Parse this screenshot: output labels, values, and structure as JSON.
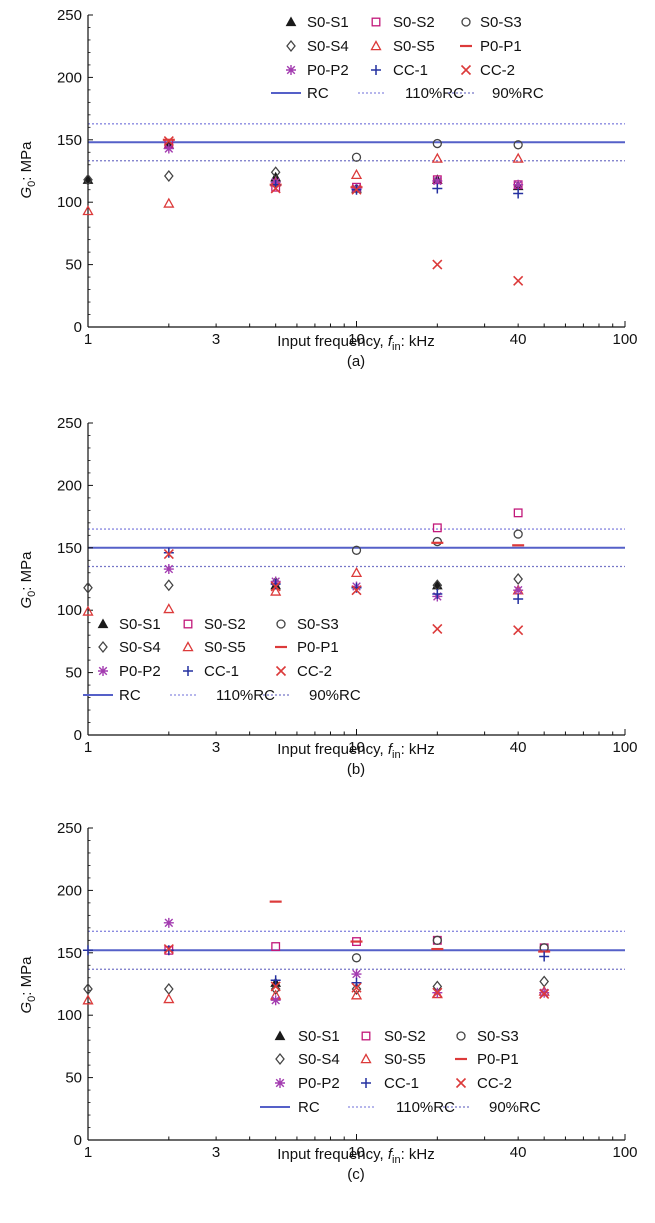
{
  "colors": {
    "black": "#1a1a1a",
    "gray": "#444444",
    "pink": "#c2187a",
    "red": "#dc3a3a",
    "purple": "#a33cb0",
    "blue": "#2430a0",
    "rc_line": "#5560c8",
    "dotted_110": "#8a8ae0",
    "dotted_90": "#7676c8"
  },
  "legend_labels": [
    "S0-S1",
    "S0-S2",
    "S0-S3",
    "S0-S4",
    "S0-S5",
    "P0-P1",
    "P0-P2",
    "CC-1",
    "CC-2",
    "RC",
    "110%RC",
    "90%RC"
  ],
  "chart_data": [
    {
      "type": "scatter",
      "panel": "(a)",
      "xlabel_main": "Input frequency, ",
      "xlabel_f": "f",
      "xlabel_sub": "in",
      "xlabel_unit": ": kHz",
      "ylabel_g": "G",
      "ylabel_sub": "0",
      "ylabel_unit": ": MPa",
      "x_scale": "log",
      "xlim": [
        1,
        100
      ],
      "ylim": [
        0,
        250
      ],
      "xticks": [
        1,
        3,
        10,
        40,
        100
      ],
      "yticks": [
        0,
        50,
        100,
        150,
        200,
        250
      ],
      "legend_position": "top-right",
      "reference_lines": {
        "RC": 148,
        "110%RC": 162.8,
        "90%RC": 133.2
      },
      "series": [
        {
          "name": "S0-S1",
          "marker": "triangle-filled",
          "color": "black",
          "x": [
            1,
            2,
            5,
            10,
            20,
            40
          ],
          "y": [
            118,
            146,
            120,
            111,
            118,
            113
          ]
        },
        {
          "name": "S0-S2",
          "marker": "square-open",
          "color": "pink",
          "x": [
            2,
            5,
            10,
            20,
            40
          ],
          "y": [
            147,
            112,
            112,
            118,
            114
          ]
        },
        {
          "name": "S0-S3",
          "marker": "circle-open",
          "color": "gray",
          "x": [
            10,
            20,
            40
          ],
          "y": [
            136,
            147,
            146
          ]
        },
        {
          "name": "S0-S4",
          "marker": "diamond-open",
          "color": "gray",
          "x": [
            1,
            2,
            5
          ],
          "y": [
            118,
            121,
            124
          ]
        },
        {
          "name": "S0-S5",
          "marker": "triangle-open",
          "color": "red",
          "x": [
            1,
            2,
            5,
            10,
            20,
            40
          ],
          "y": [
            93,
            99,
            116,
            122,
            135,
            135
          ]
        },
        {
          "name": "P0-P1",
          "marker": "dash",
          "color": "red",
          "x": [
            2,
            5,
            10
          ],
          "y": [
            150,
            114,
            112
          ]
        },
        {
          "name": "P0-P2",
          "marker": "asterisk",
          "color": "purple",
          "x": [
            2,
            5,
            10,
            20,
            40
          ],
          "y": [
            143,
            116,
            111,
            117,
            114
          ]
        },
        {
          "name": "CC-1",
          "marker": "plus",
          "color": "blue",
          "x": [
            5,
            10,
            20,
            40
          ],
          "y": [
            114,
            110,
            111,
            107
          ]
        },
        {
          "name": "CC-2",
          "marker": "x",
          "color": "red",
          "x": [
            2,
            5,
            10,
            20,
            40
          ],
          "y": [
            149,
            111,
            110,
            50,
            37
          ]
        }
      ]
    },
    {
      "type": "scatter",
      "panel": "(b)",
      "xlabel_main": "Input frequency, ",
      "xlabel_f": "f",
      "xlabel_sub": "in",
      "xlabel_unit": ": kHz",
      "ylabel_g": "G",
      "ylabel_sub": "0",
      "ylabel_unit": ": MPa",
      "x_scale": "log",
      "xlim": [
        1,
        100
      ],
      "ylim": [
        0,
        250
      ],
      "xticks": [
        1,
        3,
        10,
        40,
        100
      ],
      "yticks": [
        0,
        50,
        100,
        150,
        200,
        250
      ],
      "legend_position": "bottom-left",
      "reference_lines": {
        "RC": 150,
        "110%RC": 165,
        "90%RC": 135
      },
      "series": [
        {
          "name": "S0-S1",
          "marker": "triangle-filled",
          "color": "black",
          "x": [
            5,
            20
          ],
          "y": [
            120,
            120
          ]
        },
        {
          "name": "S0-S2",
          "marker": "square-open",
          "color": "pink",
          "x": [
            20,
            40
          ],
          "y": [
            166,
            178
          ]
        },
        {
          "name": "S0-S3",
          "marker": "circle-open",
          "color": "gray",
          "x": [
            10,
            20,
            40
          ],
          "y": [
            148,
            155,
            161
          ]
        },
        {
          "name": "S0-S4",
          "marker": "diamond-open",
          "color": "gray",
          "x": [
            1,
            2,
            5,
            20,
            40
          ],
          "y": [
            118,
            120,
            122,
            120,
            125
          ]
        },
        {
          "name": "S0-S5",
          "marker": "triangle-open",
          "color": "red",
          "x": [
            1,
            2,
            5,
            10,
            40
          ],
          "y": [
            99,
            101,
            115,
            130,
            116
          ]
        },
        {
          "name": "P0-P1",
          "marker": "dash",
          "color": "red",
          "x": [
            20,
            40
          ],
          "y": [
            154,
            152
          ]
        },
        {
          "name": "P0-P2",
          "marker": "asterisk",
          "color": "purple",
          "x": [
            2,
            5,
            10,
            20,
            40
          ],
          "y": [
            133,
            123,
            119,
            111,
            116
          ]
        },
        {
          "name": "CC-1",
          "marker": "plus",
          "color": "blue",
          "x": [
            2,
            5,
            10,
            20,
            40
          ],
          "y": [
            146,
            121,
            118,
            113,
            109
          ]
        },
        {
          "name": "CC-2",
          "marker": "x",
          "color": "red",
          "x": [
            2,
            5,
            10,
            20,
            40
          ],
          "y": [
            145,
            119,
            116,
            85,
            84
          ]
        }
      ]
    },
    {
      "type": "scatter",
      "panel": "(c)",
      "xlabel_main": "Input frequency, ",
      "xlabel_f": "f",
      "xlabel_sub": "in",
      "xlabel_unit": ": kHz",
      "ylabel_g": "G",
      "ylabel_sub": "0",
      "ylabel_unit": ": MPa",
      "x_scale": "log",
      "xlim": [
        1,
        100
      ],
      "ylim": [
        0,
        250
      ],
      "xticks": [
        1,
        3,
        10,
        40,
        100
      ],
      "yticks": [
        0,
        50,
        100,
        150,
        200,
        250
      ],
      "legend_position": "bottom-right",
      "reference_lines": {
        "RC": 152,
        "110%RC": 167.2,
        "90%RC": 136.8
      },
      "series": [
        {
          "name": "S0-S1",
          "marker": "triangle-filled",
          "color": "black",
          "x": [
            5
          ],
          "y": [
            126
          ]
        },
        {
          "name": "S0-S2",
          "marker": "square-open",
          "color": "pink",
          "x": [
            2,
            5,
            10,
            20,
            50
          ],
          "y": [
            152,
            155,
            159,
            160,
            154
          ]
        },
        {
          "name": "S0-S3",
          "marker": "circle-open",
          "color": "gray",
          "x": [
            10,
            20,
            50
          ],
          "y": [
            146,
            160,
            154
          ]
        },
        {
          "name": "S0-S4",
          "marker": "diamond-open",
          "color": "gray",
          "x": [
            1,
            2,
            5,
            10,
            20,
            50
          ],
          "y": [
            121,
            121,
            121,
            121,
            123,
            127
          ]
        },
        {
          "name": "S0-S5",
          "marker": "triangle-open",
          "color": "red",
          "x": [
            1,
            2,
            5,
            10,
            20,
            50
          ],
          "y": [
            112,
            113,
            116,
            116,
            117,
            119
          ]
        },
        {
          "name": "P0-P1",
          "marker": "dash",
          "color": "red",
          "x": [
            5,
            10,
            20,
            50
          ],
          "y": [
            191,
            159,
            153,
            151
          ]
        },
        {
          "name": "P0-P2",
          "marker": "asterisk",
          "color": "purple",
          "x": [
            2,
            5,
            10,
            20,
            50
          ],
          "y": [
            174,
            112,
            133,
            118,
            118
          ]
        },
        {
          "name": "CC-1",
          "marker": "plus",
          "color": "blue",
          "x": [
            1,
            2,
            5,
            10,
            50
          ],
          "y": [
            152,
            152,
            128,
            126,
            147
          ]
        },
        {
          "name": "CC-2",
          "marker": "x",
          "color": "red",
          "x": [
            2,
            5,
            10,
            20,
            50
          ],
          "y": [
            153,
            123,
            122,
            118,
            117
          ]
        }
      ]
    }
  ]
}
